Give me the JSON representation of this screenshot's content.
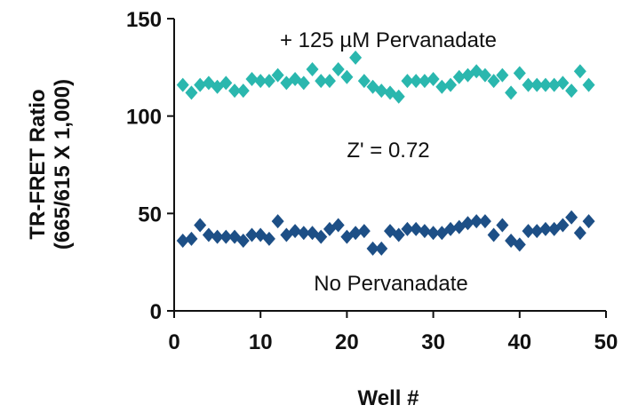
{
  "chart_data": {
    "type": "scatter",
    "xlabel": "Well #",
    "ylabel": [
      "TR-FRET Ratio",
      "(665/615 X 1,000)"
    ],
    "xlim": [
      0,
      50
    ],
    "ylim": [
      0,
      150
    ],
    "xticks": [
      0,
      10,
      20,
      30,
      40,
      50
    ],
    "yticks": [
      0,
      50,
      100,
      150
    ],
    "grid": false,
    "annotations": [
      "+ 125 µM Pervanadate",
      "Z' = 0.72",
      "No Pervanadate"
    ],
    "series": [
      {
        "color": "#2ab7ae",
        "marker": "diamond",
        "points": [
          [
            1,
            116
          ],
          [
            2,
            112
          ],
          [
            3,
            116
          ],
          [
            4,
            117
          ],
          [
            5,
            115
          ],
          [
            6,
            117
          ],
          [
            7,
            113
          ],
          [
            8,
            113
          ],
          [
            9,
            119
          ],
          [
            10,
            118
          ],
          [
            11,
            118
          ],
          [
            12,
            121
          ],
          [
            13,
            117
          ],
          [
            14,
            119
          ],
          [
            15,
            117
          ],
          [
            16,
            124
          ],
          [
            17,
            118
          ],
          [
            18,
            118
          ],
          [
            19,
            124
          ],
          [
            20,
            120
          ],
          [
            21,
            130
          ],
          [
            22,
            118
          ],
          [
            23,
            115
          ],
          [
            24,
            113
          ],
          [
            25,
            112
          ],
          [
            26,
            110
          ],
          [
            27,
            118
          ],
          [
            28,
            118
          ],
          [
            29,
            118
          ],
          [
            30,
            119
          ],
          [
            31,
            115
          ],
          [
            32,
            116
          ],
          [
            33,
            120
          ],
          [
            34,
            121
          ],
          [
            35,
            123
          ],
          [
            36,
            121
          ],
          [
            37,
            118
          ],
          [
            38,
            121
          ],
          [
            39,
            112
          ],
          [
            40,
            122
          ],
          [
            41,
            116
          ],
          [
            42,
            116
          ],
          [
            43,
            116
          ],
          [
            44,
            116
          ],
          [
            45,
            117
          ],
          [
            46,
            113
          ],
          [
            47,
            123
          ],
          [
            48,
            116
          ]
        ]
      },
      {
        "color": "#1d4f86",
        "marker": "diamond",
        "points": [
          [
            1,
            36
          ],
          [
            2,
            37
          ],
          [
            3,
            44
          ],
          [
            4,
            39
          ],
          [
            5,
            38
          ],
          [
            6,
            38
          ],
          [
            7,
            38
          ],
          [
            8,
            36
          ],
          [
            9,
            39
          ],
          [
            10,
            39
          ],
          [
            11,
            37
          ],
          [
            12,
            46
          ],
          [
            13,
            39
          ],
          [
            14,
            41
          ],
          [
            15,
            40
          ],
          [
            16,
            40
          ],
          [
            17,
            38
          ],
          [
            18,
            42
          ],
          [
            19,
            44
          ],
          [
            20,
            38
          ],
          [
            21,
            40
          ],
          [
            22,
            41
          ],
          [
            23,
            32
          ],
          [
            24,
            32
          ],
          [
            25,
            41
          ],
          [
            26,
            39
          ],
          [
            27,
            42
          ],
          [
            28,
            42
          ],
          [
            29,
            41
          ],
          [
            30,
            40
          ],
          [
            31,
            40
          ],
          [
            32,
            42
          ],
          [
            33,
            43
          ],
          [
            34,
            45
          ],
          [
            35,
            46
          ],
          [
            36,
            46
          ],
          [
            37,
            39
          ],
          [
            38,
            44
          ],
          [
            39,
            36
          ],
          [
            40,
            34
          ],
          [
            41,
            41
          ],
          [
            42,
            41
          ],
          [
            43,
            42
          ],
          [
            44,
            42
          ],
          [
            45,
            44
          ],
          [
            46,
            48
          ],
          [
            47,
            40
          ],
          [
            48,
            46
          ]
        ]
      }
    ]
  }
}
